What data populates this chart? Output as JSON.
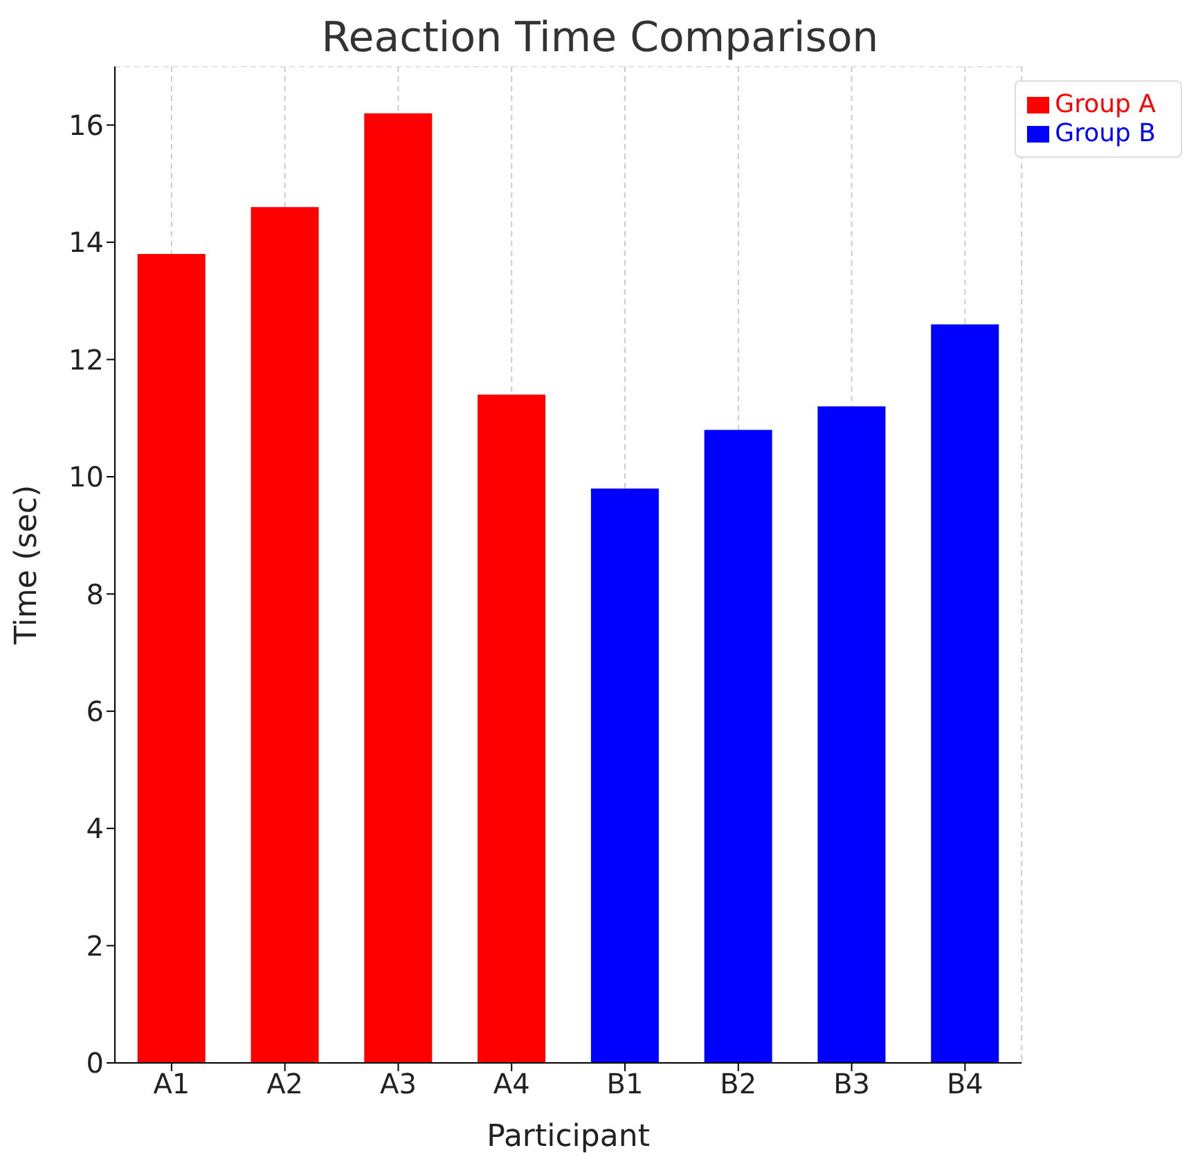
{
  "chart_data": {
    "type": "bar",
    "title": "Reaction Time Comparison",
    "xlabel": "Participant",
    "ylabel": "Time (sec)",
    "categories": [
      "A1",
      "A2",
      "A3",
      "A4",
      "B1",
      "B2",
      "B3",
      "B4"
    ],
    "series": [
      {
        "name": "Group A",
        "color": "#ff0000",
        "values": [
          13.8,
          14.6,
          16.2,
          11.4,
          null,
          null,
          null,
          null
        ]
      },
      {
        "name": "Group B",
        "color": "#0000ff",
        "values": [
          null,
          null,
          null,
          null,
          9.8,
          10.8,
          11.2,
          12.6
        ]
      }
    ],
    "stacked": true,
    "ylim": [
      0,
      17
    ],
    "yticks": [
      0,
      2,
      4,
      6,
      8,
      10,
      12,
      14,
      16
    ],
    "grid": true,
    "legend": "top right"
  }
}
